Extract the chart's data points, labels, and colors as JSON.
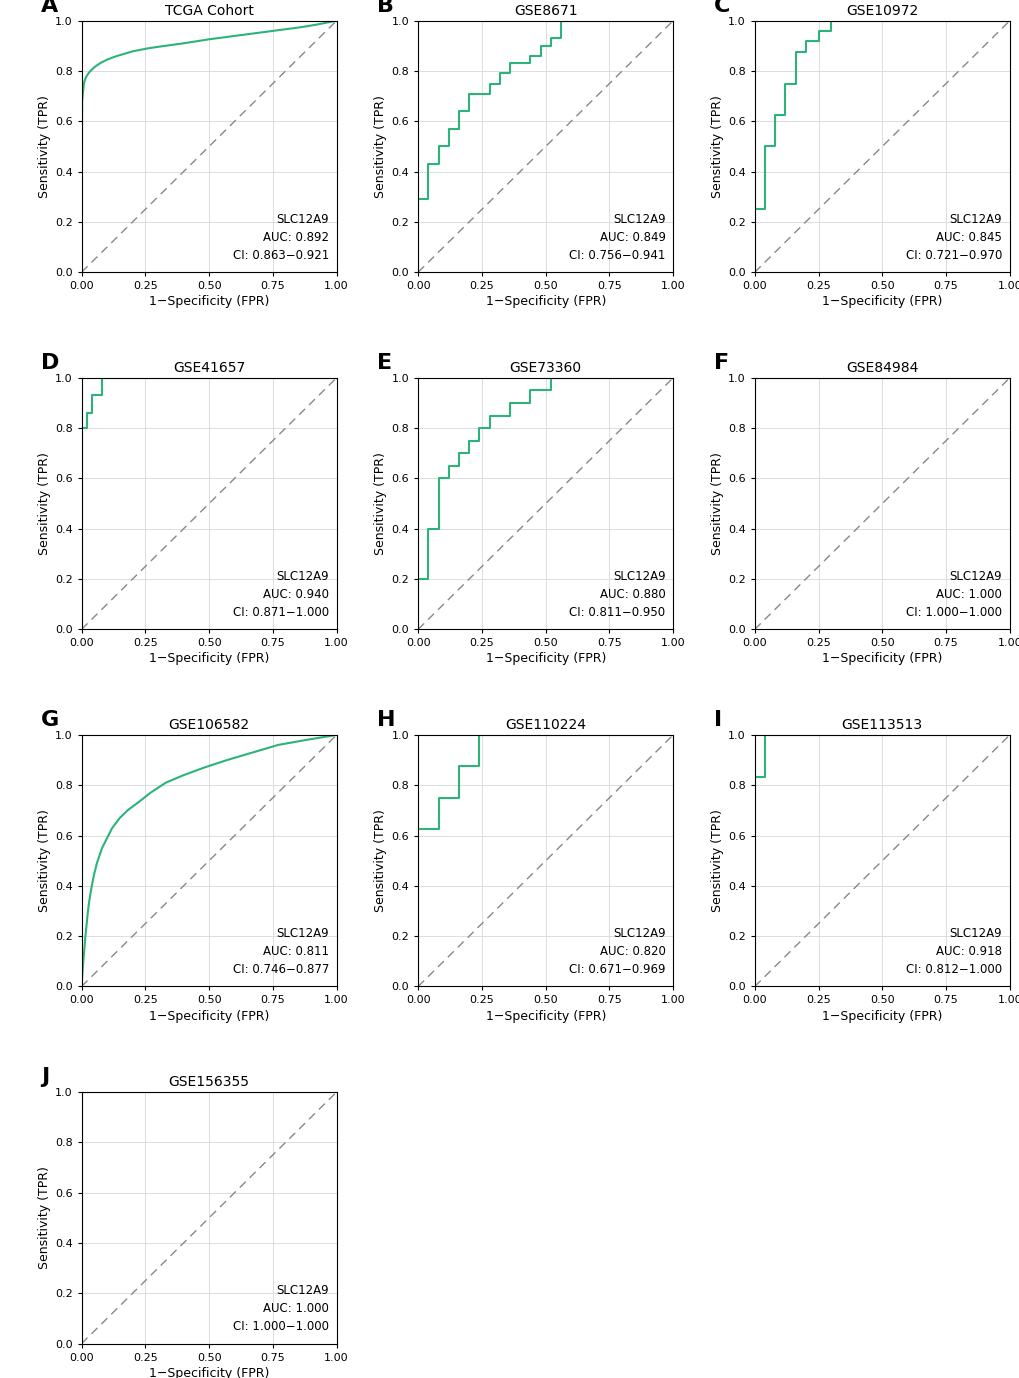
{
  "panels": [
    {
      "label": "A",
      "title": "TCGA Cohort",
      "auc": "0.892",
      "ci": "0.863−0.921",
      "roc_points": [
        [
          0,
          0
        ],
        [
          0.002,
          0.68
        ],
        [
          0.004,
          0.7
        ],
        [
          0.006,
          0.72
        ],
        [
          0.008,
          0.74
        ],
        [
          0.01,
          0.755
        ],
        [
          0.015,
          0.77
        ],
        [
          0.02,
          0.78
        ],
        [
          0.03,
          0.795
        ],
        [
          0.04,
          0.805
        ],
        [
          0.05,
          0.815
        ],
        [
          0.06,
          0.822
        ],
        [
          0.07,
          0.829
        ],
        [
          0.08,
          0.835
        ],
        [
          0.09,
          0.84
        ],
        [
          0.1,
          0.845
        ],
        [
          0.12,
          0.853
        ],
        [
          0.14,
          0.86
        ],
        [
          0.16,
          0.866
        ],
        [
          0.18,
          0.872
        ],
        [
          0.2,
          0.878
        ],
        [
          0.23,
          0.884
        ],
        [
          0.26,
          0.89
        ],
        [
          0.3,
          0.896
        ],
        [
          0.35,
          0.903
        ],
        [
          0.4,
          0.91
        ],
        [
          0.45,
          0.918
        ],
        [
          0.5,
          0.926
        ],
        [
          0.56,
          0.934
        ],
        [
          0.62,
          0.942
        ],
        [
          0.68,
          0.95
        ],
        [
          0.74,
          0.958
        ],
        [
          0.8,
          0.966
        ],
        [
          0.86,
          0.974
        ],
        [
          0.92,
          0.984
        ],
        [
          0.96,
          0.992
        ],
        [
          1.0,
          1.0
        ]
      ]
    },
    {
      "label": "B",
      "title": "GSE8671",
      "auc": "0.849",
      "ci": "0.756−0.941",
      "roc_points": [
        [
          0,
          0
        ],
        [
          0.0,
          0.29
        ],
        [
          0.04,
          0.29
        ],
        [
          0.04,
          0.43
        ],
        [
          0.08,
          0.43
        ],
        [
          0.08,
          0.5
        ],
        [
          0.12,
          0.5
        ],
        [
          0.12,
          0.57
        ],
        [
          0.16,
          0.57
        ],
        [
          0.16,
          0.64
        ],
        [
          0.2,
          0.64
        ],
        [
          0.2,
          0.71
        ],
        [
          0.28,
          0.71
        ],
        [
          0.28,
          0.75
        ],
        [
          0.32,
          0.75
        ],
        [
          0.32,
          0.79
        ],
        [
          0.36,
          0.79
        ],
        [
          0.36,
          0.83
        ],
        [
          0.44,
          0.83
        ],
        [
          0.44,
          0.86
        ],
        [
          0.48,
          0.86
        ],
        [
          0.48,
          0.9
        ],
        [
          0.52,
          0.9
        ],
        [
          0.52,
          0.93
        ],
        [
          0.56,
          0.93
        ],
        [
          0.56,
          1.0
        ],
        [
          1.0,
          1.0
        ]
      ]
    },
    {
      "label": "C",
      "title": "GSE10972",
      "auc": "0.845",
      "ci": "0.721−0.970",
      "roc_points": [
        [
          0,
          0
        ],
        [
          0.0,
          0.25
        ],
        [
          0.04,
          0.25
        ],
        [
          0.04,
          0.5
        ],
        [
          0.08,
          0.5
        ],
        [
          0.08,
          0.625
        ],
        [
          0.12,
          0.625
        ],
        [
          0.12,
          0.75
        ],
        [
          0.16,
          0.75
        ],
        [
          0.16,
          0.875
        ],
        [
          0.2,
          0.875
        ],
        [
          0.2,
          0.92
        ],
        [
          0.25,
          0.92
        ],
        [
          0.25,
          0.96
        ],
        [
          0.3,
          0.96
        ],
        [
          0.3,
          1.0
        ],
        [
          1.0,
          1.0
        ]
      ]
    },
    {
      "label": "D",
      "title": "GSE41657",
      "auc": "0.940",
      "ci": "0.871−1.000",
      "roc_points": [
        [
          0,
          0
        ],
        [
          0.0,
          0.8
        ],
        [
          0.02,
          0.8
        ],
        [
          0.02,
          0.86
        ],
        [
          0.04,
          0.86
        ],
        [
          0.04,
          0.93
        ],
        [
          0.08,
          0.93
        ],
        [
          0.08,
          1.0
        ],
        [
          1.0,
          1.0
        ]
      ]
    },
    {
      "label": "E",
      "title": "GSE73360",
      "auc": "0.880",
      "ci": "0.811−0.950",
      "roc_points": [
        [
          0,
          0
        ],
        [
          0.0,
          0.2
        ],
        [
          0.04,
          0.2
        ],
        [
          0.04,
          0.4
        ],
        [
          0.08,
          0.4
        ],
        [
          0.08,
          0.6
        ],
        [
          0.12,
          0.6
        ],
        [
          0.12,
          0.65
        ],
        [
          0.16,
          0.65
        ],
        [
          0.16,
          0.7
        ],
        [
          0.2,
          0.7
        ],
        [
          0.2,
          0.75
        ],
        [
          0.24,
          0.75
        ],
        [
          0.24,
          0.8
        ],
        [
          0.28,
          0.8
        ],
        [
          0.28,
          0.85
        ],
        [
          0.36,
          0.85
        ],
        [
          0.36,
          0.9
        ],
        [
          0.44,
          0.9
        ],
        [
          0.44,
          0.95
        ],
        [
          0.52,
          0.95
        ],
        [
          0.52,
          1.0
        ],
        [
          1.0,
          1.0
        ]
      ]
    },
    {
      "label": "F",
      "title": "GSE84984",
      "auc": "1.000",
      "ci": "1.000−1.000",
      "roc_points": [
        [
          0,
          0
        ],
        [
          0.0,
          1.0
        ],
        [
          1.0,
          1.0
        ]
      ]
    },
    {
      "label": "G",
      "title": "GSE106582",
      "auc": "0.811",
      "ci": "0.746−0.877",
      "roc_points": [
        [
          0,
          0
        ],
        [
          0.005,
          0.08
        ],
        [
          0.01,
          0.14
        ],
        [
          0.015,
          0.2
        ],
        [
          0.02,
          0.25
        ],
        [
          0.025,
          0.3
        ],
        [
          0.03,
          0.34
        ],
        [
          0.04,
          0.4
        ],
        [
          0.05,
          0.45
        ],
        [
          0.06,
          0.49
        ],
        [
          0.07,
          0.52
        ],
        [
          0.08,
          0.55
        ],
        [
          0.1,
          0.59
        ],
        [
          0.12,
          0.63
        ],
        [
          0.15,
          0.67
        ],
        [
          0.18,
          0.7
        ],
        [
          0.22,
          0.73
        ],
        [
          0.27,
          0.77
        ],
        [
          0.33,
          0.81
        ],
        [
          0.4,
          0.84
        ],
        [
          0.48,
          0.87
        ],
        [
          0.57,
          0.9
        ],
        [
          0.67,
          0.93
        ],
        [
          0.77,
          0.96
        ],
        [
          0.88,
          0.98
        ],
        [
          1.0,
          1.0
        ]
      ]
    },
    {
      "label": "H",
      "title": "GSE110224",
      "auc": "0.820",
      "ci": "0.671−0.969",
      "roc_points": [
        [
          0,
          0
        ],
        [
          0.0,
          0.625
        ],
        [
          0.08,
          0.625
        ],
        [
          0.08,
          0.75
        ],
        [
          0.16,
          0.75
        ],
        [
          0.16,
          0.875
        ],
        [
          0.24,
          0.875
        ],
        [
          0.24,
          1.0
        ],
        [
          1.0,
          1.0
        ]
      ]
    },
    {
      "label": "I",
      "title": "GSE113513",
      "auc": "0.918",
      "ci": "0.812−1.000",
      "roc_points": [
        [
          0,
          0
        ],
        [
          0.0,
          0.833
        ],
        [
          0.04,
          0.833
        ],
        [
          0.04,
          1.0
        ],
        [
          1.0,
          1.0
        ]
      ]
    },
    {
      "label": "J",
      "title": "GSE156355",
      "auc": "1.000",
      "ci": "1.000−1.000",
      "roc_points": [
        [
          0,
          0
        ],
        [
          0.0,
          1.0
        ],
        [
          1.0,
          1.0
        ]
      ]
    }
  ],
  "roc_color": "#2db37a",
  "diag_color": "#888888",
  "ax_bg_color": "#ffffff",
  "grid_color": "#d8d8d8",
  "font_size_title": 10,
  "font_size_label": 9,
  "font_size_tick": 8,
  "font_size_annot": 8.5,
  "font_size_panel": 16
}
